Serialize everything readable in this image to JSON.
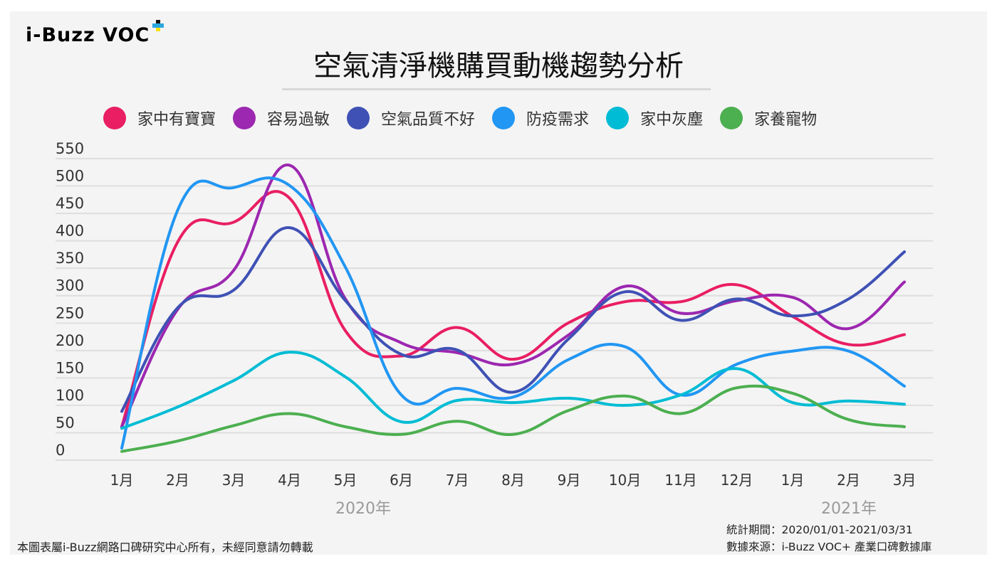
{
  "logo": {
    "text": "i-Buzz VOC",
    "plus": "+"
  },
  "title": "空氣清淨機購買動機趨勢分析",
  "footer": {
    "copyright": "本圖表屬i-Buzz網路口碑研究中心所有，未經同意請勿轉載",
    "period": "統計期間：2020/01/01-2021/03/31",
    "source": "數據來源：i-Buzz VOC+ 產業口碑數據庫"
  },
  "chart_data": {
    "type": "line",
    "title": "空氣清淨機購買動機趨勢分析",
    "categories": [
      "1月",
      "2月",
      "3月",
      "4月",
      "5月",
      "6月",
      "7月",
      "8月",
      "9月",
      "10月",
      "11月",
      "12月",
      "1月",
      "2月",
      "3月"
    ],
    "year_labels": [
      "2020年",
      "2021年"
    ],
    "yticks": [
      0,
      50,
      100,
      150,
      200,
      250,
      300,
      350,
      400,
      450,
      500,
      550
    ],
    "ylim": [
      0,
      550
    ],
    "grid": true,
    "legend_position": "top",
    "smooth": true,
    "series": [
      {
        "name": "家中有寶寶",
        "color": "#e91e63",
        "values": [
          61,
          398,
          434,
          478,
          236,
          190,
          242,
          184,
          251,
          289,
          289,
          320,
          262,
          211,
          229
        ]
      },
      {
        "name": "容易過敏",
        "color": "#9c27b0",
        "values": [
          61,
          275,
          346,
          538,
          294,
          214,
          196,
          175,
          229,
          317,
          268,
          291,
          297,
          240,
          325
        ]
      },
      {
        "name": "空氣品質不好",
        "color": "#3f51b5",
        "values": [
          89,
          278,
          310,
          424,
          291,
          193,
          201,
          124,
          222,
          307,
          255,
          294,
          263,
          294,
          380
        ]
      },
      {
        "name": "防疫需求",
        "color": "#2196f3",
        "values": [
          22,
          456,
          497,
          501,
          352,
          119,
          131,
          115,
          184,
          207,
          119,
          175,
          199,
          199,
          135
        ]
      },
      {
        "name": "家中灰塵",
        "color": "#00bcd4",
        "values": [
          58,
          97,
          145,
          197,
          152,
          70,
          109,
          105,
          113,
          100,
          119,
          167,
          105,
          108,
          102
        ]
      },
      {
        "name": "家養寵物",
        "color": "#4caf50",
        "values": [
          16,
          35,
          63,
          85,
          61,
          47,
          71,
          47,
          91,
          117,
          85,
          132,
          122,
          74,
          61
        ]
      }
    ]
  }
}
